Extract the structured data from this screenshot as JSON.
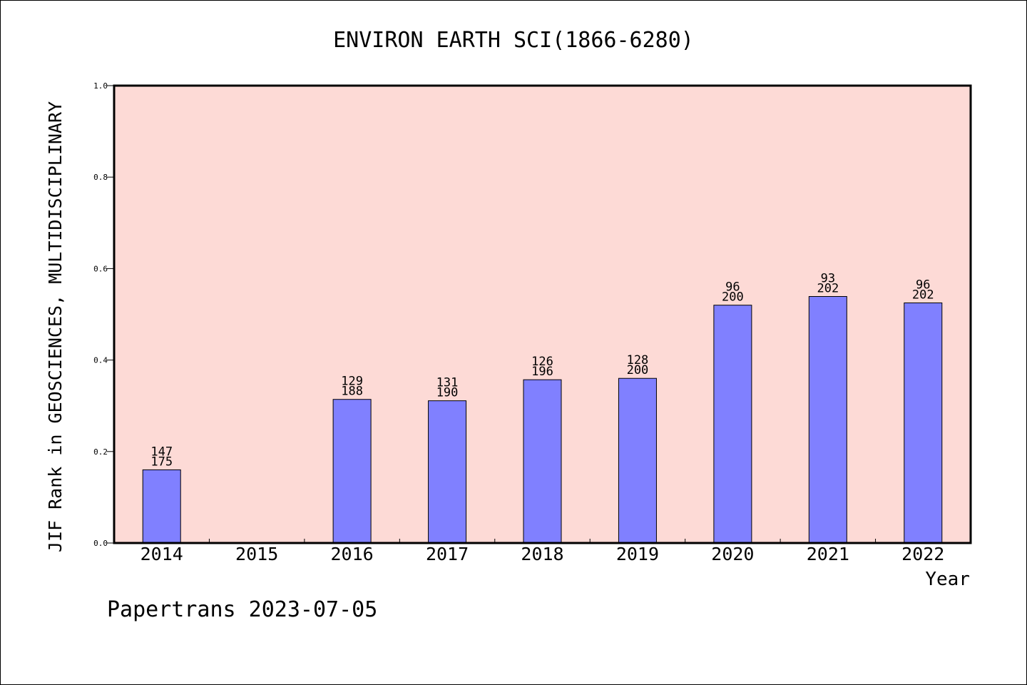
{
  "chart_data": {
    "type": "bar",
    "title": "ENVIRON EARTH SCI(1866-6280)",
    "xlabel": "Year",
    "ylabel": "JIF Rank in GEOSCIENCES, MULTIDISCIPLINARY",
    "categories": [
      "2014",
      "2015",
      "2016",
      "2017",
      "2018",
      "2019",
      "2020",
      "2021",
      "2022"
    ],
    "values": [
      0.16,
      null,
      0.314,
      0.311,
      0.357,
      0.36,
      0.52,
      0.539,
      0.525
    ],
    "bar_labels": [
      {
        "rank": "147",
        "total": "175"
      },
      null,
      {
        "rank": "129",
        "total": "188"
      },
      {
        "rank": "131",
        "total": "190"
      },
      {
        "rank": "126",
        "total": "196"
      },
      {
        "rank": "128",
        "total": "200"
      },
      {
        "rank": "96",
        "total": "200"
      },
      {
        "rank": "93",
        "total": "202"
      },
      {
        "rank": "96",
        "total": "202"
      }
    ],
    "ylim": [
      0,
      1.0
    ],
    "yticks": [
      "0.0",
      "0.2",
      "0.4",
      "0.6",
      "0.8",
      "1.0"
    ],
    "grid": false,
    "colors": {
      "plot_background": "#fddad6",
      "bar_fill": "#8080ff",
      "bar_stroke": "#000000"
    }
  },
  "footer": {
    "watermark": "Papertrans 2023-07-05"
  }
}
